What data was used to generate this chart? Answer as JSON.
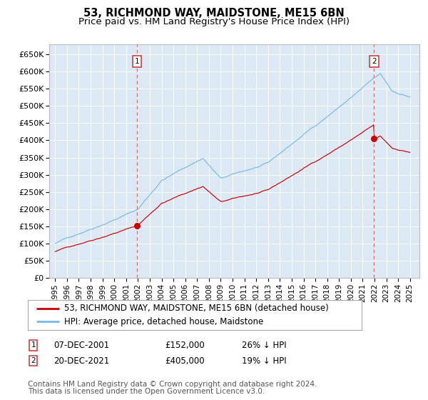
{
  "title": "53, RICHMOND WAY, MAIDSTONE, ME15 6BN",
  "subtitle": "Price paid vs. HM Land Registry's House Price Index (HPI)",
  "plot_bg_color": "#dce9f5",
  "hpi_color": "#7ab8e8",
  "price_color": "#cc0000",
  "vline_color": "#dd6666",
  "marker_color": "#cc0000",
  "purchase1_date_x": 2001.93,
  "purchase1_price": 152000,
  "purchase2_date_x": 2021.96,
  "purchase2_price": 405000,
  "ylim": [
    0,
    680000
  ],
  "xlim_start": 1994.5,
  "xlim_end": 2025.8,
  "yticks": [
    0,
    50000,
    100000,
    150000,
    200000,
    250000,
    300000,
    350000,
    400000,
    450000,
    500000,
    550000,
    600000,
    650000
  ],
  "ytick_labels": [
    "£0",
    "£50K",
    "£100K",
    "£150K",
    "£200K",
    "£250K",
    "£300K",
    "£350K",
    "£400K",
    "£450K",
    "£500K",
    "£550K",
    "£600K",
    "£650K"
  ],
  "xtick_years": [
    1995,
    1996,
    1997,
    1998,
    1999,
    2000,
    2001,
    2002,
    2003,
    2004,
    2005,
    2006,
    2007,
    2008,
    2009,
    2010,
    2011,
    2012,
    2013,
    2014,
    2015,
    2016,
    2017,
    2018,
    2019,
    2020,
    2021,
    2022,
    2023,
    2024,
    2025
  ],
  "legend_label1": "53, RICHMOND WAY, MAIDSTONE, ME15 6BN (detached house)",
  "legend_label2": "HPI: Average price, detached house, Maidstone",
  "table_row1": [
    "1",
    "07-DEC-2001",
    "£152,000",
    "26% ↓ HPI"
  ],
  "table_row2": [
    "2",
    "20-DEC-2021",
    "£405,000",
    "19% ↓ HPI"
  ],
  "footnote1": "Contains HM Land Registry data © Crown copyright and database right 2024.",
  "footnote2": "This data is licensed under the Open Government Licence v3.0.",
  "title_fontsize": 10.5,
  "subtitle_fontsize": 9.5,
  "axis_fontsize": 8,
  "legend_fontsize": 8.5,
  "table_fontsize": 8.5,
  "footnote_fontsize": 7.5
}
